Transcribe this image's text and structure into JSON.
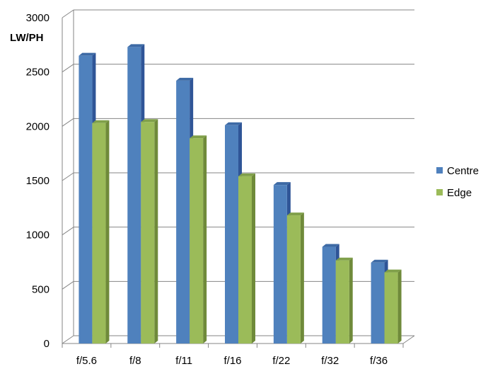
{
  "chart_data": {
    "type": "bar",
    "title": "",
    "xlabel": "",
    "ylabel": "LW/PH",
    "ylim": [
      0,
      3000
    ],
    "ytick_step": 500,
    "categories": [
      "f/5.6",
      "f/8",
      "f/11",
      "f/16",
      "f/22",
      "f/32",
      "f/36"
    ],
    "series": [
      {
        "name": "Centre",
        "values": [
          2650,
          2730,
          2420,
          2010,
          1460,
          890,
          745
        ],
        "color": "#4f81bd",
        "side_color": "#2f5597",
        "top_color": "#3d6aa5"
      },
      {
        "name": "Edge",
        "values": [
          2030,
          2040,
          1890,
          1540,
          1180,
          765,
          655
        ],
        "color": "#9bbb59",
        "side_color": "#6f8a3a",
        "top_color": "#80a04a"
      }
    ],
    "grid": true,
    "legend": "right",
    "gridline_color": "#868686"
  }
}
